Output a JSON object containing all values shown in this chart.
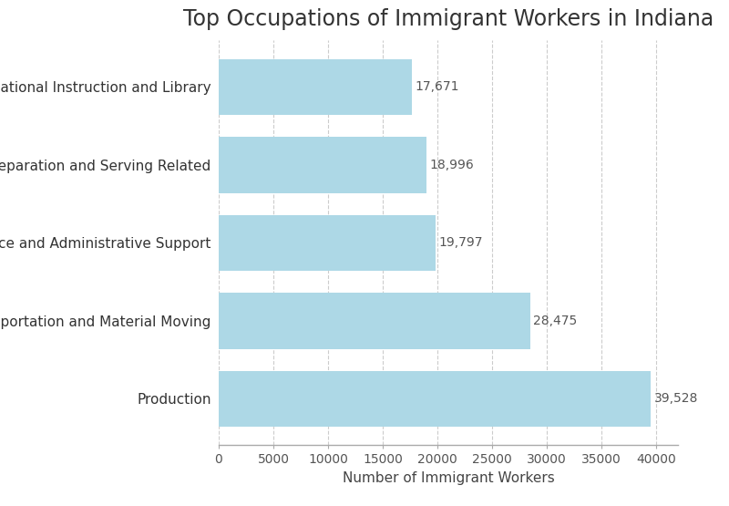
{
  "title": "Top Occupations of Immigrant Workers in Indiana",
  "categories": [
    "Production",
    "Transportation and Material Moving",
    "Office and Administrative Support",
    "Food Preparation and Serving Related",
    "Educational Instruction and Library"
  ],
  "values": [
    39528,
    28475,
    19797,
    18996,
    17671
  ],
  "bar_color": "#add8e6",
  "xlabel": "Number of Immigrant Workers",
  "xlim": [
    0,
    42000
  ],
  "xticks": [
    0,
    5000,
    10000,
    15000,
    20000,
    25000,
    30000,
    35000,
    40000
  ],
  "title_fontsize": 17,
  "label_fontsize": 11,
  "tick_fontsize": 10,
  "annotation_fontsize": 10,
  "annotation_color": "#555555",
  "background_color": "#ffffff",
  "spine_color": "#aaaaaa",
  "grid_color": "#cccccc",
  "bar_height": 0.72
}
